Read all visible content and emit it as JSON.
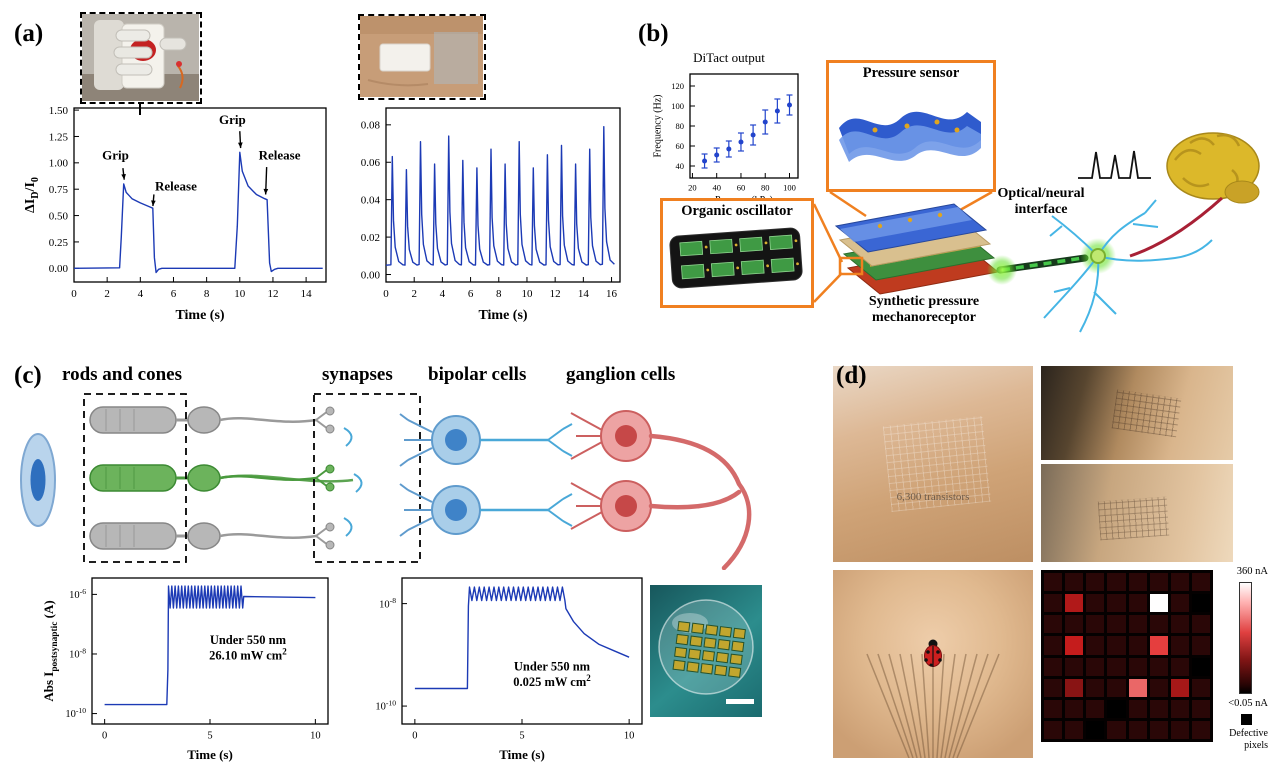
{
  "figure": {
    "bg": "#ffffff",
    "accent_orange": "#f08020",
    "trace_blue": "#1c3ab5"
  },
  "panels": {
    "a": {
      "label": "(a)"
    },
    "b": {
      "label": "(b)",
      "pressure_sensor_label": "Pressure sensor",
      "organic_oscillator_label": "Organic oscillator",
      "synthetic_label": "Synthetic pressure mechanoreceptor",
      "optical_label": "Optical/neural interface"
    },
    "c": {
      "label": "(c)",
      "headers": [
        "rods and cones",
        "synapses",
        "bipolar cells",
        "ganglion cells"
      ]
    },
    "d": {
      "label": "(d)",
      "wrist_caption": "6,300 transistors",
      "colorbar_top": "360 nA",
      "colorbar_bottom": "<0.05 nA",
      "defective_label": "Defective pixels"
    }
  },
  "chart_data": [
    {
      "id": "a_left",
      "type": "line",
      "xlabel": "Time (s)",
      "ylabel": "ΔI~D~/I~0~",
      "xlim": [
        0,
        15.2
      ],
      "ylim": [
        -0.13,
        1.52
      ],
      "xticks": [
        0,
        2,
        4,
        6,
        8,
        10,
        12,
        14
      ],
      "yticks": [
        0,
        0.25,
        0.5,
        0.75,
        1,
        1.25,
        1.5
      ],
      "ydec": 2,
      "series": [
        {
          "name": "grip-release-response",
          "color": "#1c3ab5",
          "segments": [
            {
              "pts": [
                [
                  0,
                  0
                ],
                [
                  2.75,
                  0.005
                ],
                [
                  2.85,
                  0.3
                ],
                [
                  3,
                  0.8
                ],
                [
                  3.15,
                  0.72
                ],
                [
                  3.5,
                  0.66
                ],
                [
                  4,
                  0.62
                ],
                [
                  4.6,
                  0.58
                ],
                [
                  4.75,
                  0.57
                ],
                [
                  4.85,
                  0.1
                ],
                [
                  4.95,
                  -0.04
                ],
                [
                  5.1,
                  -0.01
                ],
                [
                  5.3,
                  0
                ],
                [
                  9.7,
                  0
                ],
                [
                  9.85,
                  0.4
                ],
                [
                  10,
                  1.1
                ],
                [
                  10.15,
                  0.92
                ],
                [
                  10.5,
                  0.78
                ],
                [
                  11,
                  0.7
                ],
                [
                  11.5,
                  0.66
                ],
                [
                  11.65,
                  0.65
                ],
                [
                  11.8,
                  0.05
                ],
                [
                  11.9,
                  -0.03
                ],
                [
                  12.1,
                  -0.01
                ],
                [
                  12.3,
                  0
                ],
                [
                  15,
                  0
                ]
              ]
            }
          ]
        }
      ],
      "annotations": [
        {
          "lines": [
            "Grip"
          ],
          "x": 2.5,
          "y": 1.03,
          "arrow": [
            2.95,
            0.95,
            3.03,
            0.84
          ]
        },
        {
          "lines": [
            "Release"
          ],
          "x": 6.15,
          "y": 0.74,
          "arrow": [
            4.82,
            0.7,
            4.76,
            0.59
          ]
        },
        {
          "lines": [
            "Grip"
          ],
          "x": 9.55,
          "y": 1.37,
          "arrow": [
            10,
            1.3,
            10.05,
            1.14
          ]
        },
        {
          "lines": [
            "Release"
          ],
          "x": 12.4,
          "y": 1.03,
          "arrow": [
            11.62,
            0.96,
            11.56,
            0.7
          ]
        }
      ]
    },
    {
      "id": "a_right",
      "type": "line",
      "xlabel": "Time (s)",
      "ylabel": "",
      "xlim": [
        0,
        16.6
      ],
      "ylim": [
        -0.004,
        0.089
      ],
      "xticks": [
        0,
        2,
        4,
        6,
        8,
        10,
        12,
        14,
        16
      ],
      "yticks": [
        0,
        0.02,
        0.04,
        0.06,
        0.08
      ],
      "ydec": 2,
      "series": [
        {
          "name": "pulse-response",
          "color": "#1c3ab5",
          "segments": [
            {
              "pts": [
                [
                  0,
                  0.005
                ]
              ]
            },
            {
              "pulses": {
                "t0": 0.35,
                "period": 1.0,
                "base": 0.004,
                "peaks": [
                  0.063,
                  0.056,
                  0.071,
                  0.059,
                  0.074,
                  0.061,
                  0.057,
                  0.067,
                  0.059,
                  0.071,
                  0.057,
                  0.064,
                  0.069,
                  0.059,
                  0.067,
                  0.079
                ],
                "shape": [
                  [
                    0,
                    0.02
                  ],
                  [
                    0.1,
                    1
                  ],
                  [
                    0.18,
                    0.42
                  ],
                  [
                    0.3,
                    0.18
                  ],
                  [
                    0.55,
                    0.05
                  ],
                  [
                    0.85,
                    0.02
                  ]
                ]
              }
            }
          ]
        }
      ]
    },
    {
      "id": "b_inset",
      "type": "scatter",
      "title": "DiTact output",
      "xlabel": "Pressure (kPa)",
      "ylabel": "Frequency (Hz)",
      "xlim": [
        18,
        107
      ],
      "ylim": [
        28,
        132
      ],
      "xticks": [
        20,
        40,
        60,
        80,
        100
      ],
      "yticks": [
        40,
        60,
        80,
        100,
        120
      ],
      "series": [
        {
          "name": "frequency-vs-pressure",
          "color": "#2244cc",
          "points": [
            [
              30,
              45,
              7
            ],
            [
              40,
              51,
              7
            ],
            [
              50,
              57,
              8
            ],
            [
              60,
              64,
              9
            ],
            [
              70,
              71,
              10
            ],
            [
              80,
              84,
              12
            ],
            [
              90,
              95,
              12
            ],
            [
              100,
              101,
              10
            ]
          ]
        }
      ]
    },
    {
      "id": "c_left",
      "type": "line",
      "ylog": true,
      "xlabel": "Time (s)",
      "ylabel": "Abs I~postsynaptic~ (A)",
      "xlim": [
        -0.6,
        10.6
      ],
      "ylim": [
        -10.35,
        -5.45
      ],
      "xticks": [
        0,
        5,
        10
      ],
      "yticks": [
        -6,
        -8,
        -10
      ],
      "series": [
        {
          "name": "postsynaptic-current-strong",
          "color": "#1c3ab5",
          "segments": [
            {
              "pts": [
                [
                  0,
                  2e-10
                ],
                [
                  2.95,
                  2e-10
                ],
                [
                  3,
                  3e-09
                ]
              ]
            },
            {
              "zigzag": {
                "t0": 3.03,
                "t1": 6.55,
                "n": 46,
                "lo": 3.5e-07,
                "hi": 1.9e-06
              }
            },
            {
              "pts": [
                [
                  6.6,
                  8.5e-07
                ],
                [
                  10,
                  7.8e-07
                ]
              ]
            }
          ]
        }
      ],
      "annotations": [
        {
          "lines": [
            "Under 550 nm",
            "26.10 mW cm^2^"
          ],
          "x": 6.8,
          "y": 2.2e-08
        }
      ]
    },
    {
      "id": "c_right",
      "type": "line",
      "ylog": true,
      "xlabel": "Time (s)",
      "ylabel": "",
      "xlim": [
        -0.6,
        10.6
      ],
      "ylim": [
        -10.35,
        -7.5
      ],
      "xticks": [
        0,
        5,
        10
      ],
      "yticks": [
        -8,
        -10
      ],
      "series": [
        {
          "name": "postsynaptic-current-weak",
          "color": "#1c3ab5",
          "segments": [
            {
              "pts": [
                [
                  0,
                  2.2e-10
                ],
                [
                  2.45,
                  2.2e-10
                ],
                [
                  2.5,
                  9e-09
                ]
              ]
            },
            {
              "zigzag": {
                "t0": 2.55,
                "t1": 7.0,
                "n": 40,
                "lo": 1.15e-08,
                "hi": 2.1e-08
              }
            },
            {
              "pts": [
                [
                  7.05,
                  8e-09
                ],
                [
                  7.4,
                  4.5e-09
                ],
                [
                  7.9,
                  2.6e-09
                ],
                [
                  8.6,
                  1.6e-09
                ],
                [
                  9.3,
                  1.2e-09
                ],
                [
                  10,
                  9e-10
                ]
              ]
            }
          ]
        }
      ],
      "annotations": [
        {
          "lines": [
            "Under 550 nm",
            "0.025 mW cm^2^"
          ],
          "x": 6.4,
          "y": 5e-10
        }
      ]
    },
    {
      "id": "d_heatmap",
      "type": "heatmap",
      "rows": 8,
      "cols": 8,
      "max_nA": 360,
      "min_label_nA": 0.05,
      "values": [
        [
          15,
          15,
          15,
          15,
          15,
          15,
          15,
          15
        ],
        [
          15,
          150,
          15,
          15,
          15,
          360,
          15,
          -1
        ],
        [
          15,
          15,
          15,
          15,
          15,
          15,
          15,
          15
        ],
        [
          15,
          170,
          15,
          15,
          15,
          220,
          15,
          15
        ],
        [
          15,
          15,
          15,
          15,
          15,
          15,
          15,
          -1
        ],
        [
          15,
          110,
          15,
          15,
          250,
          15,
          140,
          15
        ],
        [
          15,
          15,
          15,
          -1,
          15,
          15,
          15,
          15
        ],
        [
          15,
          15,
          -1,
          15,
          15,
          15,
          15,
          15
        ]
      ]
    }
  ]
}
